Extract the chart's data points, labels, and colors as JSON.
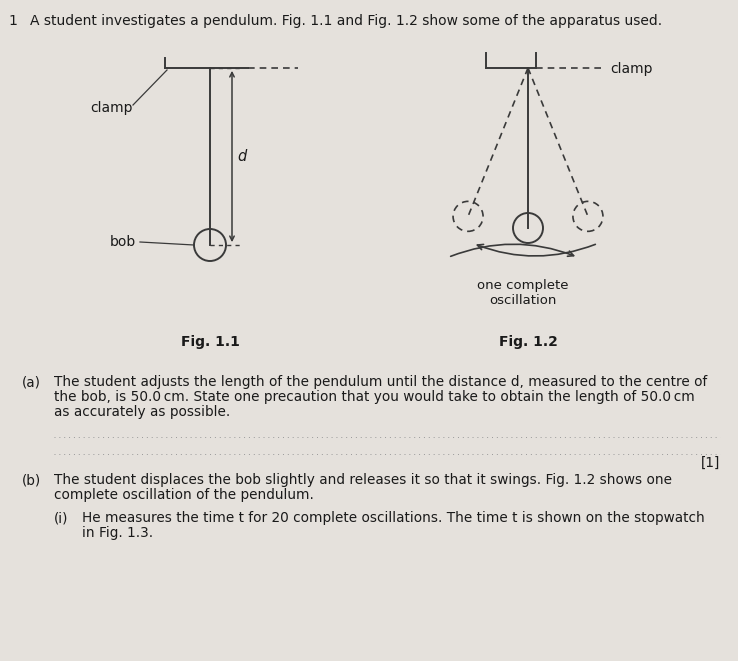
{
  "bg_color": "#e5e1dc",
  "text_color": "#1a1a1a",
  "line_color": "#3a3a3a",
  "title_number": "1",
  "title_text": "A student investigates a pendulum. Fig. 1.1 and Fig. 1.2 show some of the apparatus used.",
  "fig11_label": "Fig. 1.1",
  "fig12_label": "Fig. 1.2",
  "clamp_label_11": "clamp",
  "clamp_label_12": "clamp",
  "bob_label": "bob",
  "d_label": "d",
  "osc_label": "one complete\noscillation",
  "para_a_label": "(a)",
  "para_a_line1": "The student adjusts the length of the pendulum until the distance d, measured to the centre of",
  "para_a_line2": "the bob, is 50.0 cm. State one precaution that you would take to obtain the length of 50.0 cm",
  "para_a_line3": "as accurately as possible.",
  "mark_1": "[1]",
  "para_b_label": "(b)",
  "para_b_line1": "The student displaces the bob slightly and releases it so that it swings. Fig. 1.2 shows one",
  "para_b_line2": "complete oscillation of the pendulum.",
  "para_bi_label": "(i)",
  "para_bi_line1": "He measures the time t for 20 complete oscillations. The time t is shown on the stopwatch",
  "para_bi_line2": "in Fig. 1.3."
}
